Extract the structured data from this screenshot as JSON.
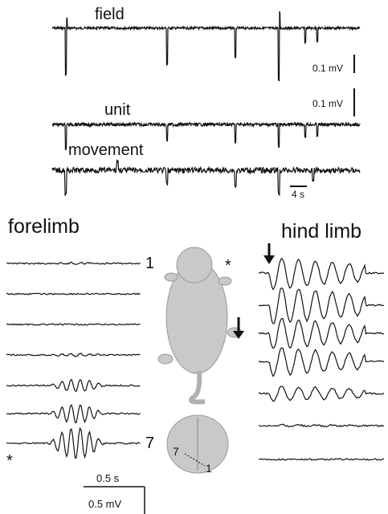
{
  "top_traces": {
    "labels": [
      "field",
      "unit",
      "movement"
    ],
    "scale_bars": [
      "0.1 mV",
      "0.1 mV",
      "4 s"
    ]
  },
  "forelimb": {
    "title": "forelimb",
    "first": "1",
    "last": "7",
    "marker": "*"
  },
  "hind_limb": {
    "title": "hind limb"
  },
  "pup": {
    "marker": "*"
  },
  "brain": {
    "labels": [
      "7",
      "1"
    ]
  },
  "scale": {
    "time": "0.5 s",
    "voltage": "0.5 mV"
  }
}
